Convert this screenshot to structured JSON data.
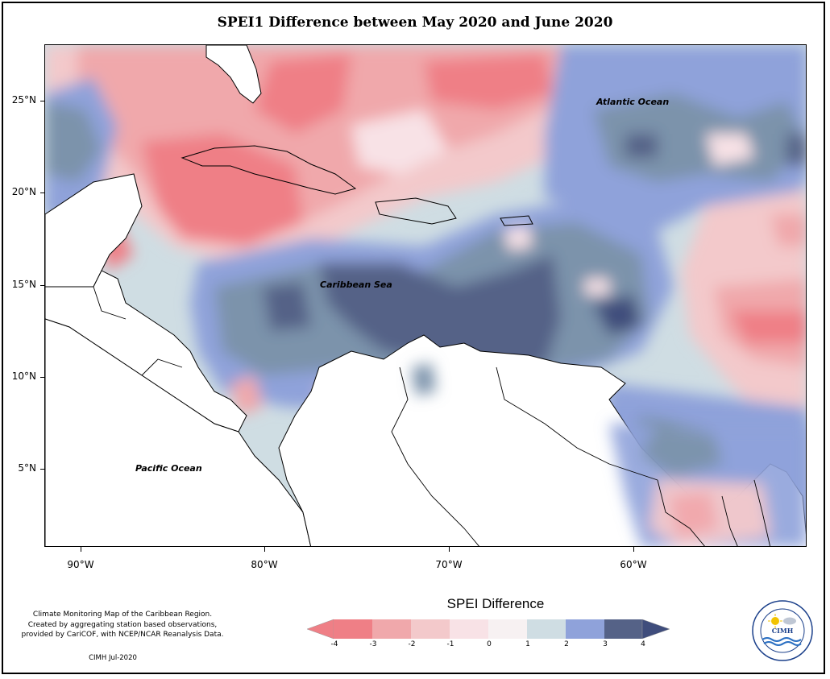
{
  "title": "SPEI1 Difference between May 2020 and June 2020",
  "map": {
    "latitude_ticks": [
      "25°N",
      "20°N",
      "15°N",
      "10°N",
      "5°N"
    ],
    "longitude_ticks": [
      "90°W",
      "80°W",
      "70°W",
      "60°W"
    ],
    "labels": {
      "atlantic": "Atlantic Ocean",
      "caribbean": "Caribbean Sea",
      "pacific": "Pacific Ocean"
    }
  },
  "legend": {
    "title": "SPEI Difference",
    "ticks": [
      "-4",
      "-3",
      "-2",
      "-1",
      "0",
      "1",
      "2",
      "3",
      "4"
    ],
    "colors": [
      "#ef7f86",
      "#f0a8ab",
      "#f3c9cb",
      "#f8e2e6",
      "#f7f1f2",
      "#cfdde3",
      "#8fa2da",
      "#7b93ab",
      "#556287",
      "#3f4d7c"
    ]
  },
  "note": {
    "line1": "Climate Monitoring Map of the Caribbean Region.",
    "line2": "Created by aggregating station based observations,",
    "line3": "provided by CariCOF, with NCEP/NCAR Reanalysis Data."
  },
  "credit": "CIMH Jul-2020",
  "logo": {
    "name": "CIMH",
    "ring_text": "Caribbean Institute for Meteorology and Hydrology"
  }
}
